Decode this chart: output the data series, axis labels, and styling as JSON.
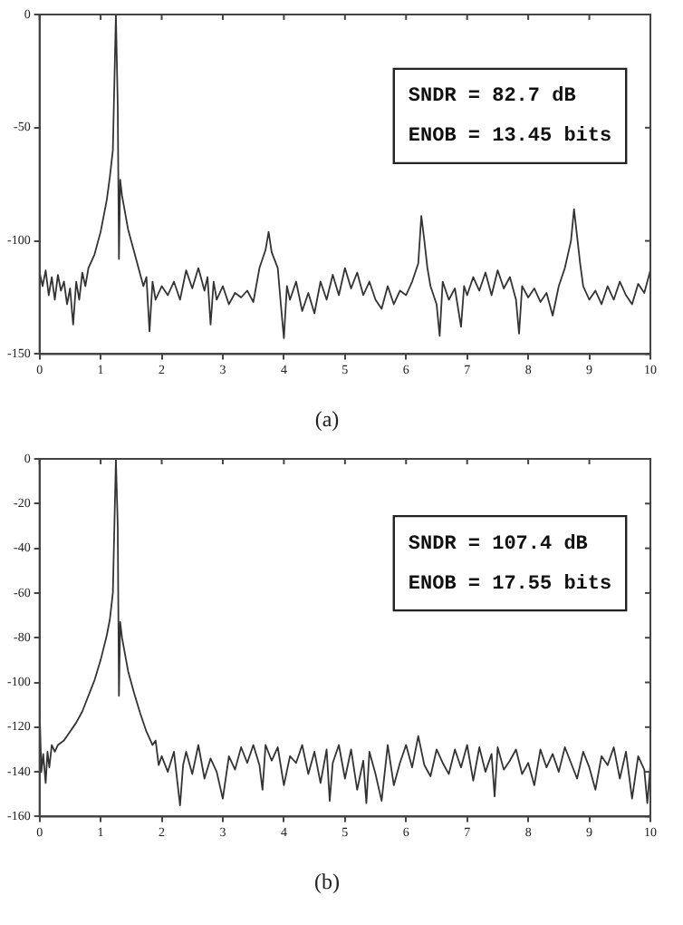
{
  "chart_data": [
    {
      "type": "line",
      "title": "(a)",
      "annotations": [
        "SNDR = 82.7 dB",
        "ENOB = 13.45 bits"
      ],
      "xlim": [
        0,
        10
      ],
      "xticks": [
        0,
        1,
        2,
        3,
        4,
        5,
        6,
        7,
        8,
        9,
        10
      ],
      "ylim": [
        -150,
        0
      ],
      "yticks": [
        -150,
        -100,
        -50,
        0
      ],
      "grid": false,
      "legend": false,
      "marker": "none",
      "line_style": "solid",
      "series": [
        {
          "color": "#333333",
          "x": [
            0,
            0.05,
            0.1,
            0.15,
            0.2,
            0.25,
            0.3,
            0.35,
            0.4,
            0.45,
            0.5,
            0.55,
            0.6,
            0.65,
            0.7,
            0.75,
            0.8,
            0.9,
            1.0,
            1.1,
            1.15,
            1.2,
            1.25,
            1.28,
            1.3,
            1.32,
            1.35,
            1.45,
            1.55,
            1.65,
            1.7,
            1.75,
            1.8,
            1.85,
            1.9,
            2.0,
            2.1,
            2.2,
            2.3,
            2.4,
            2.5,
            2.6,
            2.7,
            2.75,
            2.8,
            2.85,
            2.9,
            3.0,
            3.1,
            3.2,
            3.3,
            3.4,
            3.5,
            3.6,
            3.7,
            3.75,
            3.8,
            3.9,
            3.95,
            4.0,
            4.05,
            4.1,
            4.2,
            4.3,
            4.4,
            4.5,
            4.6,
            4.7,
            4.8,
            4.9,
            5.0,
            5.1,
            5.2,
            5.3,
            5.4,
            5.5,
            5.6,
            5.7,
            5.8,
            5.9,
            6.0,
            6.1,
            6.2,
            6.25,
            6.3,
            6.35,
            6.4,
            6.5,
            6.55,
            6.6,
            6.7,
            6.8,
            6.9,
            6.95,
            7.0,
            7.1,
            7.2,
            7.3,
            7.4,
            7.5,
            7.6,
            7.7,
            7.8,
            7.85,
            7.9,
            8.0,
            8.1,
            8.2,
            8.3,
            8.4,
            8.5,
            8.6,
            8.7,
            8.75,
            8.8,
            8.85,
            8.9,
            9.0,
            9.1,
            9.2,
            9.3,
            9.4,
            9.5,
            9.6,
            9.7,
            9.8,
            9.9,
            10
          ],
          "values": [
            -114,
            -120,
            -113,
            -124,
            -116,
            -126,
            -115,
            -122,
            -118,
            -128,
            -121,
            -137,
            -118,
            -126,
            -114,
            -120,
            -112,
            -106,
            -96,
            -82,
            -72,
            -60,
            0,
            -40,
            -108,
            -73,
            -80,
            -95,
            -105,
            -115,
            -120,
            -116,
            -140,
            -118,
            -126,
            -120,
            -124,
            -118,
            -126,
            -113,
            -121,
            -112,
            -122,
            -116,
            -137,
            -118,
            -126,
            -120,
            -128,
            -123,
            -125,
            -122,
            -127,
            -112,
            -104,
            -96,
            -105,
            -112,
            -128,
            -143,
            -120,
            -126,
            -118,
            -131,
            -123,
            -132,
            -118,
            -126,
            -115,
            -124,
            -112,
            -121,
            -114,
            -124,
            -118,
            -126,
            -130,
            -120,
            -128,
            -122,
            -124,
            -118,
            -110,
            -89,
            -100,
            -112,
            -120,
            -128,
            -142,
            -118,
            -126,
            -121,
            -138,
            -120,
            -124,
            -116,
            -122,
            -114,
            -124,
            -113,
            -121,
            -116,
            -126,
            -141,
            -120,
            -125,
            -121,
            -127,
            -123,
            -133,
            -120,
            -112,
            -100,
            -86,
            -98,
            -110,
            -120,
            -126,
            -122,
            -128,
            -120,
            -126,
            -118,
            -124,
            -128,
            -119,
            -123,
            -113
          ]
        }
      ]
    },
    {
      "type": "line",
      "title": "(b)",
      "annotations": [
        "SNDR = 107.4 dB",
        "ENOB = 17.55 bits"
      ],
      "xlim": [
        0,
        10
      ],
      "xticks": [
        0,
        1,
        2,
        3,
        4,
        5,
        6,
        7,
        8,
        9,
        10
      ],
      "ylim": [
        -160,
        0
      ],
      "yticks": [
        -160,
        -140,
        -120,
        -100,
        -80,
        -60,
        -40,
        -20,
        0
      ],
      "grid": false,
      "legend": false,
      "marker": "none",
      "line_style": "solid",
      "series": [
        {
          "color": "#333333",
          "x": [
            0,
            0.03,
            0.06,
            0.1,
            0.13,
            0.16,
            0.2,
            0.25,
            0.3,
            0.4,
            0.5,
            0.6,
            0.7,
            0.8,
            0.9,
            1.0,
            1.1,
            1.15,
            1.2,
            1.25,
            1.28,
            1.3,
            1.32,
            1.35,
            1.45,
            1.55,
            1.65,
            1.75,
            1.85,
            1.9,
            1.95,
            2.0,
            2.1,
            2.2,
            2.3,
            2.35,
            2.4,
            2.5,
            2.6,
            2.7,
            2.8,
            2.9,
            3.0,
            3.1,
            3.2,
            3.3,
            3.4,
            3.5,
            3.6,
            3.65,
            3.7,
            3.8,
            3.9,
            4.0,
            4.1,
            4.2,
            4.3,
            4.4,
            4.5,
            4.6,
            4.7,
            4.75,
            4.8,
            4.9,
            5.0,
            5.1,
            5.2,
            5.3,
            5.35,
            5.4,
            5.5,
            5.6,
            5.7,
            5.8,
            5.9,
            6.0,
            6.1,
            6.2,
            6.3,
            6.4,
            6.5,
            6.6,
            6.7,
            6.8,
            6.9,
            7.0,
            7.1,
            7.2,
            7.3,
            7.4,
            7.45,
            7.5,
            7.6,
            7.7,
            7.8,
            7.9,
            8.0,
            8.1,
            8.2,
            8.3,
            8.4,
            8.5,
            8.6,
            8.7,
            8.8,
            8.9,
            9.0,
            9.1,
            9.2,
            9.3,
            9.4,
            9.5,
            9.6,
            9.7,
            9.8,
            9.9,
            9.95,
            10
          ],
          "values": [
            -112,
            -140,
            -132,
            -145,
            -131,
            -138,
            -128,
            -131,
            -128,
            -126,
            -122,
            -118,
            -113,
            -106,
            -99,
            -90,
            -79,
            -72,
            -60,
            0,
            -30,
            -106,
            -73,
            -80,
            -95,
            -105,
            -114,
            -122,
            -128,
            -126,
            -137,
            -133,
            -140,
            -131,
            -155,
            -137,
            -131,
            -141,
            -128,
            -143,
            -134,
            -140,
            -152,
            -133,
            -139,
            -129,
            -136,
            -128,
            -137,
            -148,
            -128,
            -135,
            -129,
            -146,
            -133,
            -136,
            -128,
            -141,
            -131,
            -145,
            -130,
            -153,
            -136,
            -128,
            -143,
            -130,
            -148,
            -135,
            -154,
            -131,
            -141,
            -153,
            -128,
            -146,
            -136,
            -128,
            -138,
            -124,
            -137,
            -142,
            -130,
            -136,
            -141,
            -130,
            -138,
            -128,
            -144,
            -129,
            -140,
            -132,
            -151,
            -129,
            -139,
            -135,
            -130,
            -141,
            -136,
            -146,
            -130,
            -138,
            -132,
            -140,
            -129,
            -136,
            -143,
            -131,
            -138,
            -148,
            -133,
            -137,
            -129,
            -143,
            -131,
            -152,
            -133,
            -139,
            -154,
            -137
          ]
        }
      ]
    }
  ]
}
